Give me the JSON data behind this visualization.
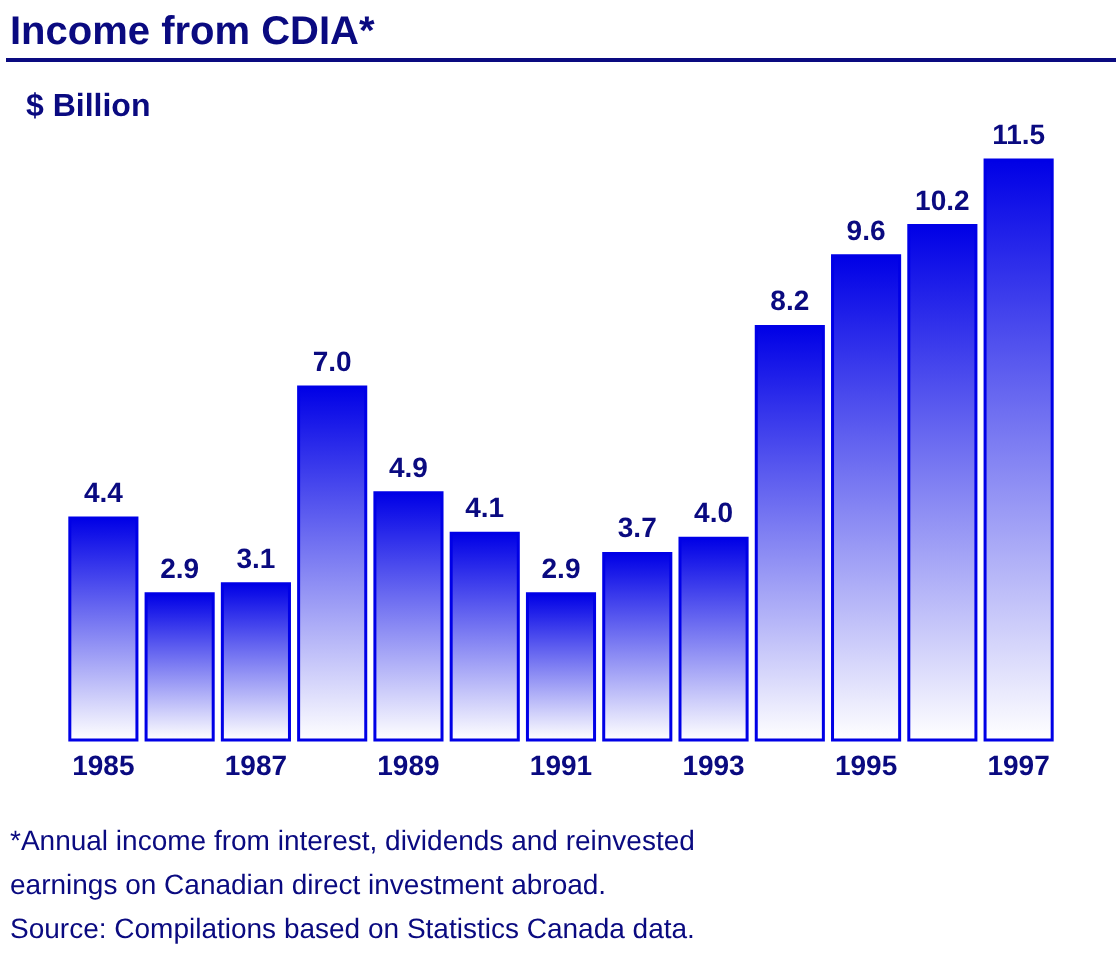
{
  "chart_data": {
    "type": "bar",
    "title": "Income from CDIA*",
    "ylabel": "$ Billion",
    "categories": [
      "1985",
      null,
      "1987",
      null,
      "1989",
      null,
      "1991",
      null,
      "1993",
      null,
      "1995",
      null,
      "1997"
    ],
    "values": [
      4.4,
      2.9,
      3.1,
      7.0,
      4.9,
      4.1,
      2.9,
      3.7,
      4.0,
      8.2,
      9.6,
      10.2,
      11.5
    ],
    "color": "#0000e6",
    "value_labels": [
      "4.4",
      "2.9",
      "3.1",
      "7.0",
      "4.9",
      "4.1",
      "2.9",
      "3.7",
      "4.0",
      "8.2",
      "9.6",
      "10.2",
      "11.5"
    ],
    "annotations": [
      "*Annual income from interest, dividends and reinvested earnings on Canadian direct investment abroad.",
      "Source:  Compilations based on Statistics Canada data."
    ]
  }
}
